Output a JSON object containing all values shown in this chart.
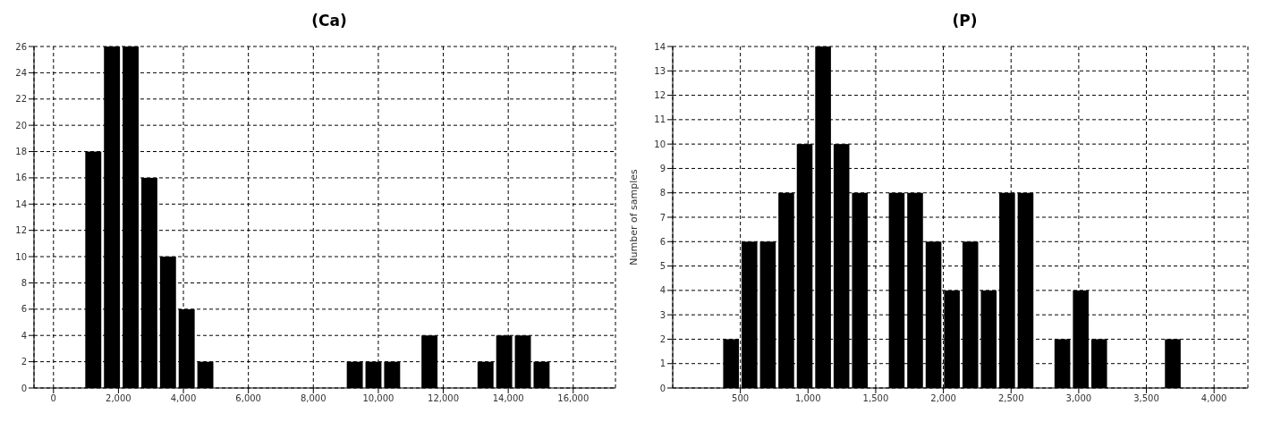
{
  "chart_data": [
    {
      "type": "histogram",
      "title": "(Ca)",
      "color": "#000000",
      "grid": true,
      "bins": [
        950,
        1525,
        2100,
        2675,
        3250,
        3825,
        4400,
        4975,
        5550,
        6125,
        6700,
        7275,
        7850,
        8425,
        9000,
        9575,
        10150,
        10725,
        11300,
        11875,
        12450,
        13025,
        13600,
        14175,
        14750,
        15325
      ],
      "values": [
        18,
        26,
        26,
        16,
        10,
        6,
        2,
        0,
        0,
        0,
        0,
        0,
        0,
        0,
        2,
        2,
        2,
        0,
        4,
        0,
        0,
        2,
        4,
        4,
        2
      ],
      "xlim": [
        -600,
        17300
      ],
      "xticks": [
        0,
        {
          "value": 2000,
          "label": "2,000"
        },
        {
          "value": 4000,
          "label": "4,000"
        },
        {
          "value": 6000,
          "label": "6,000"
        },
        {
          "value": 8000,
          "label": "8,000"
        },
        {
          "value": 10000,
          "label": "10,000"
        },
        {
          "value": 12000,
          "label": "12,000"
        },
        {
          "value": 14000,
          "label": "14,000"
        },
        {
          "value": 16000,
          "label": "16,000"
        }
      ],
      "ylim": [
        0,
        26
      ],
      "yticks": [
        0,
        2,
        4,
        6,
        8,
        10,
        12,
        14,
        16,
        18,
        20,
        22,
        24,
        26
      ]
    },
    {
      "type": "histogram",
      "title": "(P)",
      "ylabel": "Number of samples",
      "color": "#000000",
      "grid": true,
      "bins": [
        365,
        501,
        637,
        773,
        909,
        1045,
        1181,
        1317,
        1453,
        1589,
        1725,
        1861,
        1997,
        2133,
        2269,
        2405,
        2541,
        2677,
        2813,
        2949,
        3085,
        3221,
        3357,
        3493,
        3629,
        3765
      ],
      "values": [
        2,
        6,
        6,
        8,
        10,
        14,
        10,
        8,
        0,
        8,
        8,
        6,
        4,
        6,
        4,
        8,
        8,
        0,
        2,
        4,
        2,
        0,
        0,
        0,
        2
      ],
      "xlim": [
        0,
        4250
      ],
      "xticks": [
        500,
        {
          "value": 1000,
          "label": "1,000"
        },
        {
          "value": 1500,
          "label": "1,500"
        },
        {
          "value": 2000,
          "label": "2,000"
        },
        {
          "value": 2500,
          "label": "2,500"
        },
        {
          "value": 3000,
          "label": "3,000"
        },
        {
          "value": 3500,
          "label": "3,500"
        },
        {
          "value": 4000,
          "label": "4,000"
        }
      ],
      "ylim": [
        0,
        14
      ],
      "yticks": [
        0,
        1,
        2,
        3,
        4,
        5,
        6,
        7,
        8,
        9,
        10,
        11,
        12,
        13,
        14
      ]
    }
  ]
}
